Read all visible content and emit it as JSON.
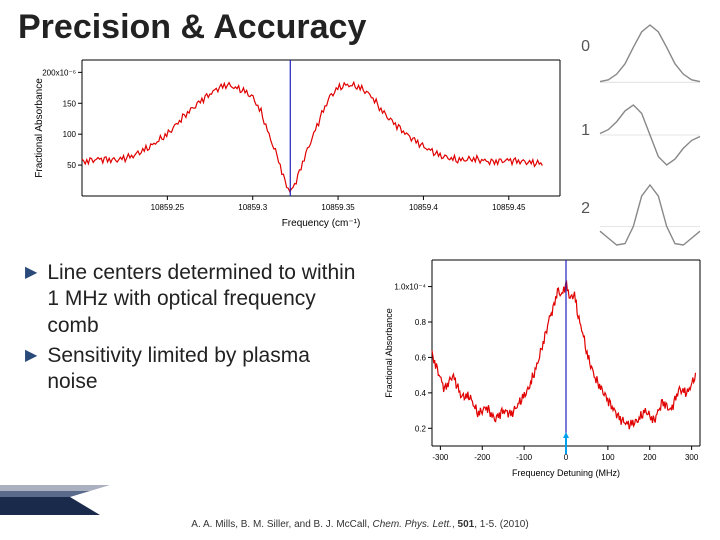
{
  "title": "Precision & Accuracy",
  "top_chart": {
    "type": "line",
    "ylabel": "Fractional Absorbance",
    "xlabel": "Frequency (cm⁻¹)",
    "label_fontsize": 10,
    "tick_fontsize": 8,
    "xlim": [
      10859.2,
      10859.48
    ],
    "xticks": [
      10859.25,
      10859.3,
      10859.35,
      10859.4,
      10859.45
    ],
    "ylim": [
      0,
      220
    ],
    "yticks": [
      50,
      100,
      150,
      200
    ],
    "ytick_labels": [
      "50",
      "100",
      "150",
      "200x10⁻⁶"
    ],
    "line_color": "#e00000",
    "axis_color": "#000000",
    "marker_line_color": "#2020c0",
    "marker_x": 10859.322,
    "background_color": "#ffffff",
    "data": {
      "x": [
        10859.2,
        10859.21,
        10859.22,
        10859.23,
        10859.24,
        10859.25,
        10859.26,
        10859.27,
        10859.275,
        10859.28,
        10859.285,
        10859.29,
        10859.295,
        10859.3,
        10859.305,
        10859.31,
        10859.315,
        10859.318,
        10859.322,
        10859.326,
        10859.33,
        10859.335,
        10859.34,
        10859.345,
        10859.35,
        10859.355,
        10859.36,
        10859.365,
        10859.37,
        10859.375,
        10859.38,
        10859.39,
        10859.4,
        10859.41,
        10859.42,
        10859.43,
        10859.44,
        10859.45,
        10859.46,
        10859.47
      ],
      "y": [
        55,
        60,
        58,
        65,
        80,
        100,
        130,
        155,
        165,
        175,
        180,
        175,
        170,
        160,
        135,
        95,
        60,
        30,
        5,
        28,
        60,
        95,
        130,
        160,
        175,
        180,
        178,
        172,
        160,
        140,
        125,
        100,
        80,
        65,
        58,
        60,
        55,
        58,
        55,
        52
      ]
    }
  },
  "derivatives": {
    "labels": [
      "0",
      "1",
      "2"
    ],
    "label_fontsize": 16,
    "curve_color": "#888888",
    "axis_color": "#cccccc",
    "curves": {
      "0": {
        "type": "gaussian",
        "x": [
          -3,
          -2.5,
          -2,
          -1.5,
          -1,
          -0.5,
          0,
          0.5,
          1,
          1.5,
          2,
          2.5,
          3
        ],
        "y": [
          0.01,
          0.04,
          0.14,
          0.32,
          0.61,
          0.88,
          1.0,
          0.88,
          0.61,
          0.32,
          0.14,
          0.04,
          0.01
        ]
      },
      "1": {
        "type": "gaussian_d1",
        "x": [
          -3,
          -2.5,
          -2,
          -1.5,
          -1,
          -0.5,
          0,
          0.5,
          1,
          1.5,
          2,
          2.5,
          3
        ],
        "y": [
          0.03,
          0.11,
          0.27,
          0.49,
          0.61,
          0.44,
          0.0,
          -0.44,
          -0.61,
          -0.49,
          -0.27,
          -0.11,
          -0.03
        ]
      },
      "2": {
        "type": "gaussian_d2",
        "x": [
          -3,
          -2.5,
          -2,
          -1.5,
          -1,
          -0.5,
          0,
          0.5,
          1,
          1.5,
          2,
          2.5,
          3
        ],
        "y": [
          -0.07,
          -0.17,
          -0.27,
          -0.25,
          0.0,
          0.44,
          0.6,
          0.44,
          0.0,
          -0.25,
          -0.27,
          -0.17,
          -0.07
        ]
      }
    }
  },
  "bullets": [
    "Line centers determined to within 1 MHz with optical frequency comb",
    "Sensitivity limited by plasma noise"
  ],
  "bottom_chart": {
    "type": "line",
    "ylabel": "Fractional Absorbance",
    "xlabel": "Frequency Detuning (MHz)",
    "label_fontsize": 9,
    "tick_fontsize": 8,
    "xlim": [
      -320,
      320
    ],
    "xticks": [
      -300,
      -200,
      -100,
      0,
      100,
      200,
      300
    ],
    "ylim": [
      0.1,
      1.15
    ],
    "yticks": [
      0.2,
      0.4,
      0.6,
      0.8,
      1.0
    ],
    "ytick_labels": [
      "0.2",
      "0.4",
      "0.6",
      "0.8",
      "1.0x10⁻⁴"
    ],
    "line_color": "#e00000",
    "axis_color": "#000000",
    "marker_line_color": "#2020c0",
    "marker_arrow_color": "#00a0f0",
    "marker_x": 0,
    "background_color": "#ffffff",
    "data": {
      "x": [
        -310,
        -290,
        -270,
        -250,
        -230,
        -210,
        -190,
        -170,
        -150,
        -130,
        -110,
        -90,
        -70,
        -50,
        -40,
        -30,
        -20,
        -10,
        0,
        10,
        20,
        30,
        40,
        50,
        70,
        90,
        110,
        130,
        150,
        170,
        190,
        210,
        230,
        250,
        270,
        290,
        310
      ],
      "y": [
        0.55,
        0.42,
        0.5,
        0.38,
        0.38,
        0.28,
        0.32,
        0.25,
        0.3,
        0.28,
        0.35,
        0.42,
        0.55,
        0.72,
        0.82,
        0.88,
        0.98,
        0.95,
        1.02,
        0.93,
        0.96,
        0.82,
        0.74,
        0.62,
        0.48,
        0.4,
        0.32,
        0.25,
        0.22,
        0.24,
        0.3,
        0.24,
        0.35,
        0.3,
        0.42,
        0.4,
        0.5
      ]
    }
  },
  "citation": {
    "authors": "A. A. Mills, B. M. Siller, and B. J. McCall, ",
    "journal": "Chem. Phys. Lett.",
    "sep": ", ",
    "volume": "501",
    "rest": ", 1-5. (2010)"
  },
  "accent": {
    "colors": [
      "#1a2a4a",
      "#5a6a8a",
      "#aab0c0"
    ]
  }
}
